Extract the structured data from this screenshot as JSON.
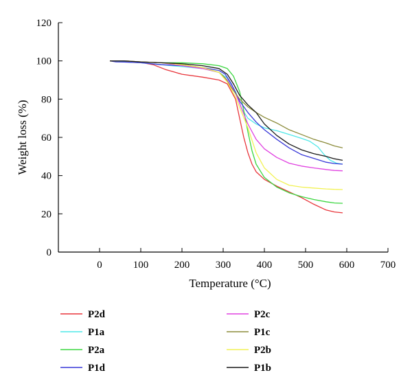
{
  "chart_data": {
    "type": "line",
    "xlabel": "Temperature (°C)",
    "ylabel": "Weight loss (%)",
    "xlim": [
      -100,
      700
    ],
    "ylim": [
      0,
      120
    ],
    "xticks": [
      0,
      100,
      200,
      300,
      400,
      500,
      600,
      700
    ],
    "yticks": [
      0,
      20,
      40,
      60,
      80,
      100,
      120
    ],
    "grid": false,
    "legend_position": "below",
    "series": [
      {
        "name": "P2d",
        "color": "#e8343a",
        "points": [
          [
            25,
            100
          ],
          [
            60,
            99.6
          ],
          [
            100,
            99.2
          ],
          [
            130,
            98
          ],
          [
            160,
            95.5
          ],
          [
            200,
            93
          ],
          [
            250,
            91.5
          ],
          [
            290,
            90
          ],
          [
            310,
            88
          ],
          [
            330,
            80
          ],
          [
            340,
            70
          ],
          [
            350,
            60
          ],
          [
            360,
            52
          ],
          [
            370,
            46
          ],
          [
            380,
            42
          ],
          [
            400,
            38
          ],
          [
            430,
            34.5
          ],
          [
            460,
            31.5
          ],
          [
            490,
            28.5
          ],
          [
            520,
            25
          ],
          [
            550,
            22
          ],
          [
            570,
            21
          ],
          [
            590,
            20.5
          ]
        ]
      },
      {
        "name": "P1a",
        "color": "#4de8e8",
        "points": [
          [
            25,
            100
          ],
          [
            60,
            99.5
          ],
          [
            100,
            99
          ],
          [
            150,
            98
          ],
          [
            200,
            97
          ],
          [
            250,
            96
          ],
          [
            290,
            94
          ],
          [
            310,
            91
          ],
          [
            330,
            84
          ],
          [
            345,
            75
          ],
          [
            360,
            70
          ],
          [
            380,
            67
          ],
          [
            400,
            65
          ],
          [
            430,
            63.5
          ],
          [
            460,
            61.5
          ],
          [
            490,
            59.5
          ],
          [
            510,
            58
          ],
          [
            530,
            55
          ],
          [
            545,
            51
          ],
          [
            560,
            48
          ],
          [
            575,
            46.5
          ],
          [
            590,
            46
          ]
        ]
      },
      {
        "name": "P2a",
        "color": "#39d63e",
        "points": [
          [
            25,
            100
          ],
          [
            60,
            100
          ],
          [
            100,
            99.5
          ],
          [
            150,
            99
          ],
          [
            200,
            99
          ],
          [
            250,
            98.5
          ],
          [
            290,
            97.5
          ],
          [
            310,
            96
          ],
          [
            325,
            92
          ],
          [
            340,
            84
          ],
          [
            350,
            74
          ],
          [
            360,
            63
          ],
          [
            370,
            53
          ],
          [
            380,
            46
          ],
          [
            400,
            39
          ],
          [
            430,
            34
          ],
          [
            460,
            31
          ],
          [
            490,
            29
          ],
          [
            520,
            27.5
          ],
          [
            550,
            26.3
          ],
          [
            570,
            25.7
          ],
          [
            590,
            25.5
          ]
        ]
      },
      {
        "name": "P1d",
        "color": "#3838d8",
        "points": [
          [
            25,
            100
          ],
          [
            40,
            99.5
          ],
          [
            60,
            99.4
          ],
          [
            100,
            99
          ],
          [
            150,
            98
          ],
          [
            200,
            97.5
          ],
          [
            250,
            96.5
          ],
          [
            290,
            95
          ],
          [
            305,
            93
          ],
          [
            320,
            88
          ],
          [
            340,
            79
          ],
          [
            360,
            73
          ],
          [
            380,
            68
          ],
          [
            400,
            64
          ],
          [
            430,
            59
          ],
          [
            460,
            54.5
          ],
          [
            490,
            51
          ],
          [
            520,
            49
          ],
          [
            550,
            47
          ],
          [
            570,
            46.3
          ],
          [
            590,
            46
          ]
        ]
      },
      {
        "name": "P2c",
        "color": "#e040e0",
        "points": [
          [
            25,
            100
          ],
          [
            60,
            100
          ],
          [
            100,
            99.5
          ],
          [
            150,
            99
          ],
          [
            200,
            97.5
          ],
          [
            250,
            96
          ],
          [
            290,
            94
          ],
          [
            310,
            90
          ],
          [
            330,
            83
          ],
          [
            345,
            75
          ],
          [
            360,
            67
          ],
          [
            380,
            59
          ],
          [
            400,
            54
          ],
          [
            430,
            49.5
          ],
          [
            460,
            46.5
          ],
          [
            490,
            45
          ],
          [
            520,
            44
          ],
          [
            550,
            43.2
          ],
          [
            570,
            42.7
          ],
          [
            590,
            42.5
          ]
        ]
      },
      {
        "name": "P1c",
        "color": "#8b8b3a",
        "points": [
          [
            25,
            100
          ],
          [
            60,
            100
          ],
          [
            100,
            99.5
          ],
          [
            150,
            99
          ],
          [
            200,
            98
          ],
          [
            250,
            96.5
          ],
          [
            290,
            94
          ],
          [
            305,
            91
          ],
          [
            320,
            86
          ],
          [
            340,
            80
          ],
          [
            360,
            76
          ],
          [
            380,
            73
          ],
          [
            400,
            70.5
          ],
          [
            430,
            67.5
          ],
          [
            460,
            64
          ],
          [
            490,
            61.5
          ],
          [
            520,
            59
          ],
          [
            550,
            57
          ],
          [
            570,
            55.5
          ],
          [
            590,
            54.5
          ]
        ]
      },
      {
        "name": "P2b",
        "color": "#f2f252",
        "points": [
          [
            25,
            100
          ],
          [
            60,
            100
          ],
          [
            100,
            99.5
          ],
          [
            150,
            99
          ],
          [
            200,
            98
          ],
          [
            250,
            96.5
          ],
          [
            290,
            94
          ],
          [
            310,
            89
          ],
          [
            330,
            81
          ],
          [
            345,
            73
          ],
          [
            360,
            65
          ],
          [
            380,
            52
          ],
          [
            400,
            44
          ],
          [
            430,
            38
          ],
          [
            460,
            35
          ],
          [
            490,
            34
          ],
          [
            520,
            33.5
          ],
          [
            550,
            33
          ],
          [
            570,
            32.8
          ],
          [
            590,
            32.7
          ]
        ]
      },
      {
        "name": "P1b",
        "color": "#1a1a1a",
        "points": [
          [
            25,
            100
          ],
          [
            60,
            100
          ],
          [
            100,
            99.5
          ],
          [
            150,
            99
          ],
          [
            200,
            98.5
          ],
          [
            250,
            97.5
          ],
          [
            290,
            96
          ],
          [
            310,
            93
          ],
          [
            325,
            88
          ],
          [
            340,
            82
          ],
          [
            360,
            77
          ],
          [
            380,
            73
          ],
          [
            400,
            67
          ],
          [
            430,
            61
          ],
          [
            460,
            56.5
          ],
          [
            490,
            53.5
          ],
          [
            520,
            51.5
          ],
          [
            550,
            50
          ],
          [
            570,
            48.8
          ],
          [
            590,
            48
          ]
        ]
      }
    ]
  }
}
